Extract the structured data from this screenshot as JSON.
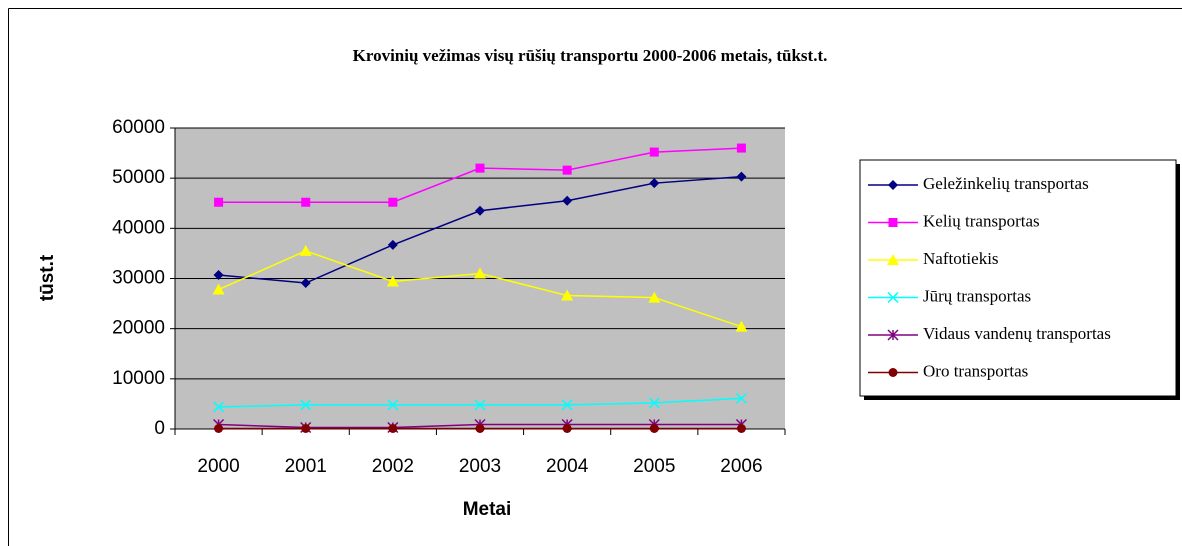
{
  "chart_data": {
    "type": "line",
    "title": "Krovinių vežimas visų rūšių transportu 2000-2006 metais, tūkst.t.",
    "x_label": "Metai",
    "y_label": "tūst.t",
    "categories": [
      "2000",
      "2001",
      "2002",
      "2003",
      "2004",
      "2005",
      "2006"
    ],
    "series": [
      {
        "name": "Geležinkelių transportas",
        "color": "#000080",
        "marker": "diamond",
        "values": [
          30700,
          29100,
          36700,
          43500,
          45500,
          49000,
          50300
        ]
      },
      {
        "name": "Kelių transportas",
        "color": "#ff00ff",
        "marker": "square",
        "values": [
          45200,
          45200,
          45200,
          52000,
          51600,
          55200,
          56000
        ]
      },
      {
        "name": "Naftotiekis",
        "color": "#ffff00",
        "marker": "triangle",
        "values": [
          27800,
          35500,
          29400,
          31000,
          26600,
          26200,
          20400
        ]
      },
      {
        "name": "Jūrų transportas",
        "color": "#00ffff",
        "marker": "x",
        "values": [
          4400,
          4800,
          4800,
          4800,
          4800,
          5200,
          6100
        ]
      },
      {
        "name": "Vidaus vandenų transportas",
        "color": "#800080",
        "marker": "asterisk",
        "values": [
          900,
          300,
          300,
          900,
          900,
          900,
          900
        ]
      },
      {
        "name": "Oro transportas",
        "color": "#800000",
        "marker": "circle",
        "values": [
          100,
          100,
          100,
          100,
          100,
          100,
          100
        ]
      }
    ],
    "ylim": [
      0,
      60000
    ],
    "yticks": [
      0,
      10000,
      20000,
      30000,
      40000,
      50000,
      60000
    ],
    "grid": true,
    "plot_background": "#c0c0c0",
    "legend": "right"
  }
}
